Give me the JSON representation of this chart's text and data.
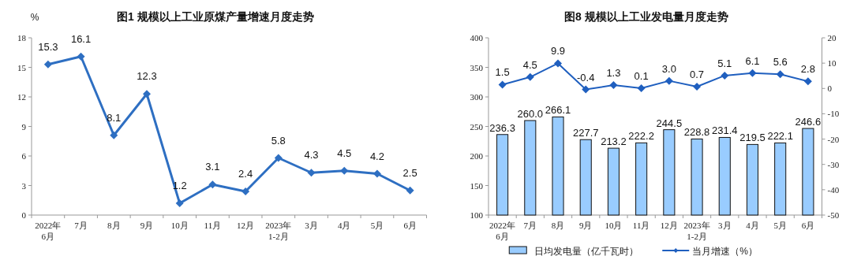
{
  "chart_data": [
    {
      "type": "line",
      "title": "图1  规模以上工业原煤产量增速月度走势",
      "ylabel": "%",
      "categories": [
        "2022年\n6月",
        "7月",
        "8月",
        "9月",
        "10月",
        "11月",
        "12月",
        "2023年\n1-2月",
        "3月",
        "4月",
        "5月",
        "6月"
      ],
      "values": [
        15.3,
        16.1,
        8.1,
        12.3,
        1.2,
        3.1,
        2.4,
        5.8,
        4.3,
        4.5,
        4.2,
        2.5
      ],
      "color": "#2e6fc2",
      "ylim": [
        0,
        18
      ],
      "yticks": [
        0,
        3,
        6,
        9,
        12,
        15,
        18
      ],
      "marker": "diamond",
      "data_labels": true
    },
    {
      "type": "bar",
      "title": "图8  规模以上工业发电量月度走势",
      "categories": [
        "2022年\n6月",
        "7月",
        "8月",
        "9月",
        "10月",
        "11月",
        "12月",
        "2023年\n1-2月",
        "3月",
        "4月",
        "5月",
        "6月"
      ],
      "series": [
        {
          "name": "日均发电量（亿千瓦时）",
          "color": "#99ccff",
          "values": [
            236.3,
            260.0,
            266.1,
            227.7,
            213.2,
            222.2,
            244.5,
            228.8,
            231.4,
            219.5,
            222.1,
            246.6
          ],
          "value_labels": [
            "236.3",
            "260.0",
            "266.1",
            "227.7",
            "213.2",
            "222.2",
            "244.5",
            "228.8",
            "231.4",
            "219.5",
            "222.1",
            "246.6"
          ]
        },
        {
          "type": "line",
          "axis": "y2",
          "name": "当月增速（%）",
          "color": "#1f5fbf",
          "values": [
            1.5,
            4.5,
            9.9,
            -0.4,
            1.3,
            0.1,
            3.0,
            0.7,
            5.1,
            6.1,
            5.6,
            2.8
          ],
          "value_labels": [
            "1.5",
            "4.5",
            "9.9",
            "-0.4",
            "1.3",
            "0.1",
            "3.0",
            "0.7",
            "5.1",
            "6.1",
            "5.6",
            "2.8"
          ]
        }
      ],
      "ylim": [
        100,
        400
      ],
      "yticks": [
        100,
        150,
        200,
        250,
        300,
        350,
        400
      ],
      "y2lim": [
        -50,
        20
      ],
      "y2ticks": [
        -50,
        -40,
        -30,
        -20,
        -10,
        0,
        10,
        20
      ],
      "marker": "diamond",
      "legend": "bottom"
    }
  ]
}
